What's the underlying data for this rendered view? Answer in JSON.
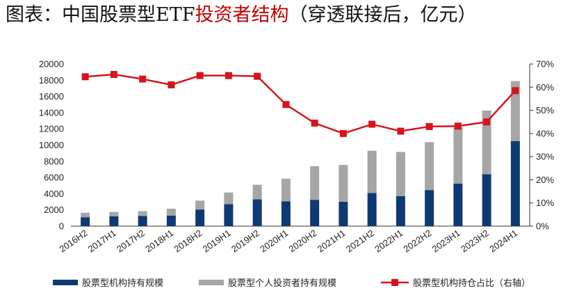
{
  "title": {
    "part1": "图表：中国股票型ETF",
    "part2": "投资者结构",
    "part3": "（穿透联接后，亿元）"
  },
  "colors": {
    "institutional": "#0d3a73",
    "individual": "#a6a6a6",
    "ratio": "#d7141e",
    "title_accent": "#c00000"
  },
  "chart_data": {
    "type": "bar",
    "stacked": true,
    "categories": [
      "2016H2",
      "2017H1",
      "2017H2",
      "2018H1",
      "2018H2",
      "2019H1",
      "2019H2",
      "2020H1",
      "2020H2",
      "2021H1",
      "2021H2",
      "2022H1",
      "2022H2",
      "2023H1",
      "2023H2",
      "2024H1"
    ],
    "series": [
      {
        "name": "股票型机构持有规模",
        "type": "bar",
        "axis": "left",
        "values": [
          1100,
          1200,
          1250,
          1300,
          2050,
          2700,
          3300,
          3050,
          3250,
          3000,
          4100,
          3700,
          4450,
          5250,
          6400,
          10500
        ]
      },
      {
        "name": "股票型个人投资者持有规模",
        "type": "bar",
        "axis": "left",
        "values": [
          550,
          550,
          600,
          850,
          1100,
          1450,
          1800,
          2800,
          4150,
          4550,
          5200,
          5450,
          5900,
          6900,
          7850,
          7400
        ]
      },
      {
        "name": "股票型机构持仓占比（右轴）",
        "type": "line",
        "axis": "right",
        "values": [
          64.5,
          65.5,
          63.5,
          61.0,
          65.0,
          65.0,
          64.7,
          52.5,
          44.5,
          40.0,
          44.0,
          41.0,
          43.0,
          43.2,
          45.0,
          58.5
        ]
      }
    ],
    "left_axis": {
      "ylim": [
        0,
        20000
      ],
      "ticks": [
        "0",
        "2000",
        "4000",
        "6000",
        "8000",
        "10000",
        "12000",
        "14000",
        "16000",
        "18000",
        "20000"
      ]
    },
    "right_axis": {
      "ylim": [
        0,
        70
      ],
      "ticks": [
        "0%",
        "10%",
        "20%",
        "30%",
        "40%",
        "50%",
        "60%",
        "70%"
      ]
    },
    "legend_position": "bottom",
    "grid": false
  }
}
